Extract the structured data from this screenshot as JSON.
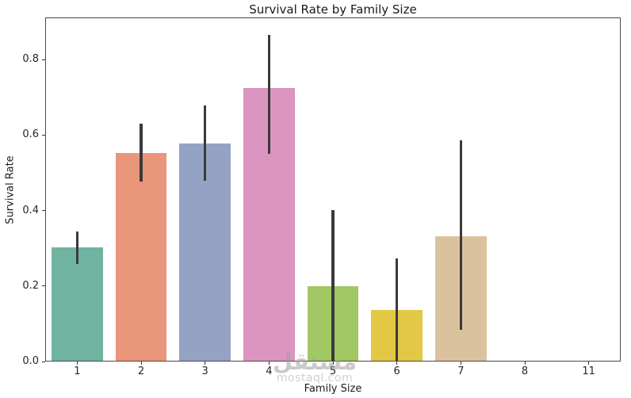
{
  "figure": {
    "title": "Survival Rate by Family Size",
    "xlabel": "Family Size",
    "ylabel": "Survival Rate"
  },
  "watermark": {
    "arabic_text": "مستقل",
    "domain_text": "mostaql.com"
  },
  "chart_data": {
    "type": "bar",
    "title": "Survival Rate by Family Size",
    "xlabel": "Family Size",
    "ylabel": "Survival Rate",
    "categories": [
      "1",
      "2",
      "3",
      "4",
      "5",
      "6",
      "7",
      "8",
      "11"
    ],
    "values": [
      0.303,
      0.553,
      0.578,
      0.724,
      0.2,
      0.136,
      0.333,
      0.0,
      0.0
    ],
    "error_low": [
      0.258,
      0.477,
      0.479,
      0.55,
      0.0,
      0.0,
      0.083,
      null,
      null
    ],
    "error_high": [
      0.345,
      0.63,
      0.679,
      0.866,
      0.401,
      0.273,
      0.586,
      null,
      null
    ],
    "bar_colors": [
      "#71B3A1",
      "#E9967A",
      "#94A3C3",
      "#DB95C0",
      "#A2C765",
      "#E3C845",
      "#DBC29E",
      "#C9C9C9",
      "#C9C9C9"
    ],
    "error_bar_color": "#3A3A3A",
    "ytick_labels": [
      "0.0",
      "0.2",
      "0.4",
      "0.6",
      "0.8"
    ],
    "ytick_values": [
      0.0,
      0.2,
      0.4,
      0.6,
      0.8
    ],
    "ylim": [
      0,
      0.912
    ],
    "grid": false,
    "legend_position": "none",
    "bar_width_fraction": 0.8
  }
}
